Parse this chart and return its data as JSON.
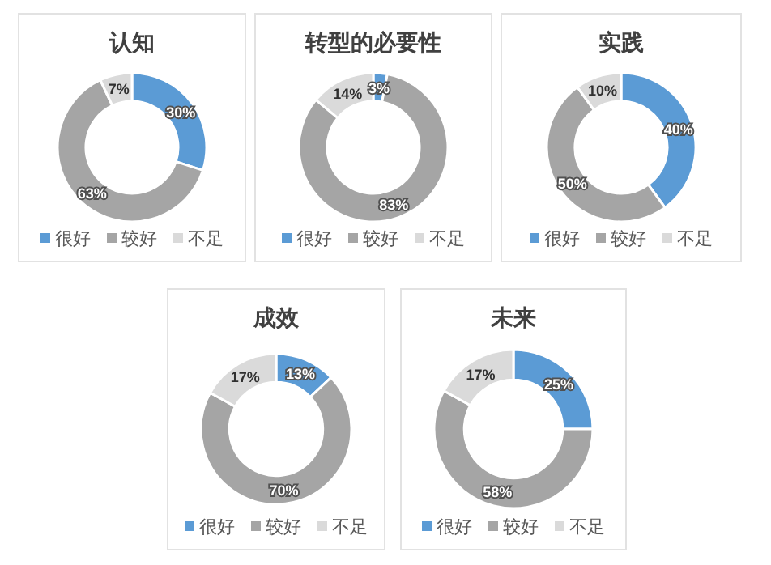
{
  "chart_data": [
    {
      "type": "donut",
      "title": "认知",
      "categories": [
        "很好",
        "较好",
        "不足"
      ],
      "values": [
        30,
        63,
        7
      ],
      "value_labels": [
        "30%",
        "63%",
        "7%"
      ],
      "colors": [
        "#5b9bd5",
        "#a5a5a5",
        "#dadada"
      ],
      "legend": "bottom"
    },
    {
      "type": "donut",
      "title": "转型的必要性",
      "categories": [
        "很好",
        "较好",
        "不足"
      ],
      "values": [
        3,
        83,
        14
      ],
      "value_labels": [
        "3%",
        "83%",
        "14%"
      ],
      "colors": [
        "#5b9bd5",
        "#a5a5a5",
        "#dadada"
      ],
      "legend": "bottom"
    },
    {
      "type": "donut",
      "title": "实践",
      "categories": [
        "很好",
        "较好",
        "不足"
      ],
      "values": [
        40,
        50,
        10
      ],
      "value_labels": [
        "40%",
        "50%",
        "10%"
      ],
      "colors": [
        "#5b9bd5",
        "#a5a5a5",
        "#dadada"
      ],
      "legend": "bottom"
    },
    {
      "type": "donut",
      "title": "成效",
      "categories": [
        "很好",
        "较好",
        "不足"
      ],
      "values": [
        13,
        70,
        17
      ],
      "value_labels": [
        "13%",
        "70%",
        "17%"
      ],
      "colors": [
        "#5b9bd5",
        "#a5a5a5",
        "#dadada"
      ],
      "legend": "bottom"
    },
    {
      "type": "donut",
      "title": "未来",
      "categories": [
        "很好",
        "较好",
        "不足"
      ],
      "values": [
        25,
        58,
        17
      ],
      "value_labels": [
        "25%",
        "58%",
        "17%"
      ],
      "colors": [
        "#5b9bd5",
        "#a5a5a5",
        "#dadada"
      ],
      "legend": "bottom"
    }
  ]
}
